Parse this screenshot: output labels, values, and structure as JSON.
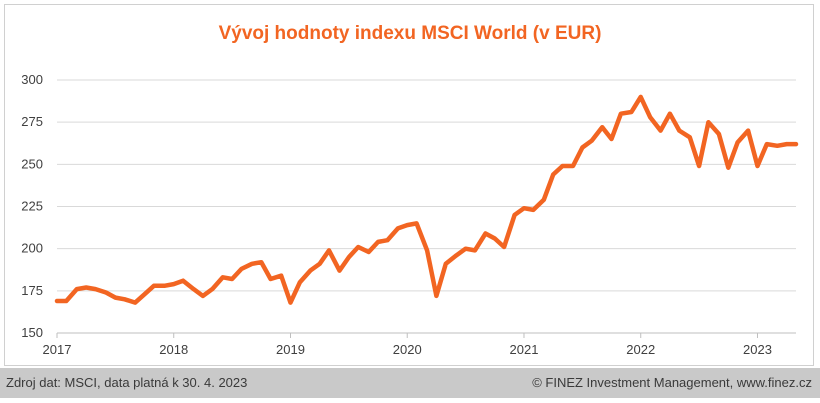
{
  "chart_data": {
    "type": "line",
    "title": "Vývoj hodnoty indexu MSCI World (v EUR)",
    "xlabel": "",
    "ylabel": "",
    "ylim": [
      150,
      300
    ],
    "yticks": [
      150,
      175,
      200,
      225,
      250,
      275,
      300
    ],
    "xlim": [
      2017.0,
      2023.33
    ],
    "xticks": [
      "2017",
      "2018",
      "2019",
      "2020",
      "2021",
      "2022",
      "2023"
    ],
    "grid": "horizontal",
    "color": "#f26522",
    "series": [
      {
        "name": "MSCI World (EUR)",
        "x": [
          2017.0,
          2017.08,
          2017.17,
          2017.25,
          2017.33,
          2017.42,
          2017.5,
          2017.58,
          2017.67,
          2017.75,
          2017.83,
          2017.92,
          2018.0,
          2018.08,
          2018.17,
          2018.25,
          2018.33,
          2018.42,
          2018.5,
          2018.58,
          2018.67,
          2018.75,
          2018.83,
          2018.92,
          2019.0,
          2019.08,
          2019.17,
          2019.25,
          2019.33,
          2019.42,
          2019.5,
          2019.58,
          2019.67,
          2019.75,
          2019.83,
          2019.92,
          2020.0,
          2020.08,
          2020.17,
          2020.25,
          2020.33,
          2020.42,
          2020.5,
          2020.58,
          2020.67,
          2020.75,
          2020.83,
          2020.92,
          2021.0,
          2021.08,
          2021.17,
          2021.25,
          2021.33,
          2021.42,
          2021.5,
          2021.58,
          2021.67,
          2021.75,
          2021.83,
          2021.92,
          2022.0,
          2022.08,
          2022.17,
          2022.25,
          2022.33,
          2022.42,
          2022.5,
          2022.58,
          2022.67,
          2022.75,
          2022.83,
          2022.92,
          2023.0,
          2023.08,
          2023.17,
          2023.25,
          2023.33
        ],
        "values": [
          169,
          169,
          176,
          177,
          176,
          174,
          171,
          170,
          168,
          173,
          178,
          178,
          179,
          181,
          176,
          172,
          176,
          183,
          182,
          188,
          191,
          192,
          182,
          184,
          168,
          180,
          187,
          191,
          199,
          187,
          195,
          201,
          198,
          204,
          205,
          212,
          214,
          215,
          199,
          172,
          191,
          196,
          200,
          199,
          209,
          206,
          201,
          220,
          224,
          223,
          229,
          244,
          249,
          249,
          260,
          264,
          272,
          265,
          280,
          281,
          290,
          278,
          270,
          280,
          270,
          266,
          249,
          275,
          268,
          248,
          263,
          270,
          249,
          262,
          261,
          262,
          262
        ]
      }
    ]
  },
  "footer": {
    "source": "Zdroj dat: MSCI, data platná k 30. 4. 2023",
    "copyright": "© FINEZ Investment Management, www.finez.cz"
  }
}
